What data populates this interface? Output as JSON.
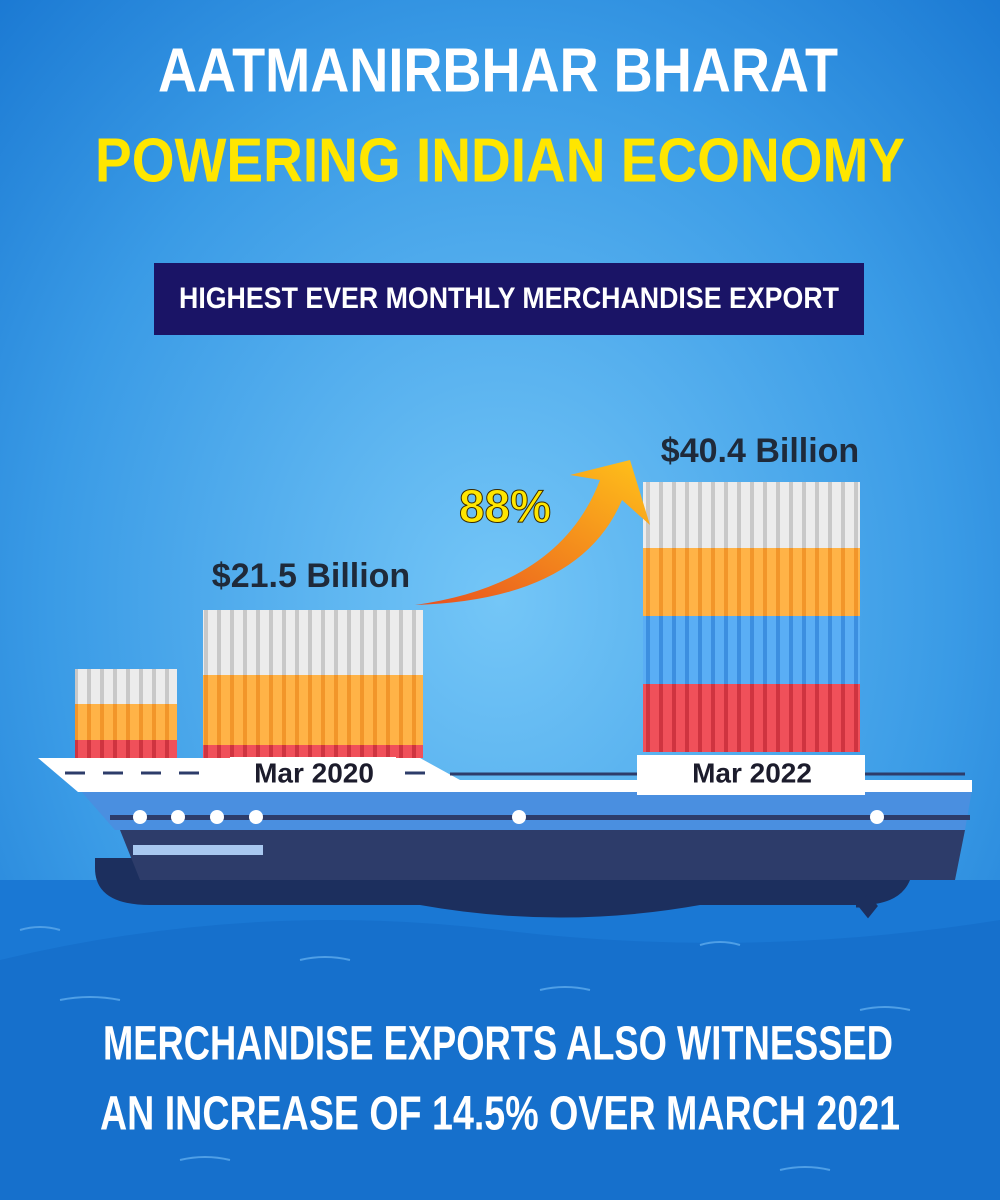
{
  "header": {
    "title": "AATMANIRBHAR BHARAT",
    "subtitle": "POWERING INDIAN ECONOMY",
    "banner": "HIGHEST EVER MONTHLY MERCHANDISE EXPORT"
  },
  "exports": [
    {
      "label": "Mar 2020",
      "value": "$21.5 Billion"
    },
    {
      "label": "Mar 2022",
      "value": "$40.4 Billion"
    }
  ],
  "growth": "88%",
  "footer": {
    "lines": [
      "MERCHANDISE EXPORTS ALSO WITNESSED",
      "AN INCREASE OF 14.5% OVER MARCH 2021"
    ]
  }
}
